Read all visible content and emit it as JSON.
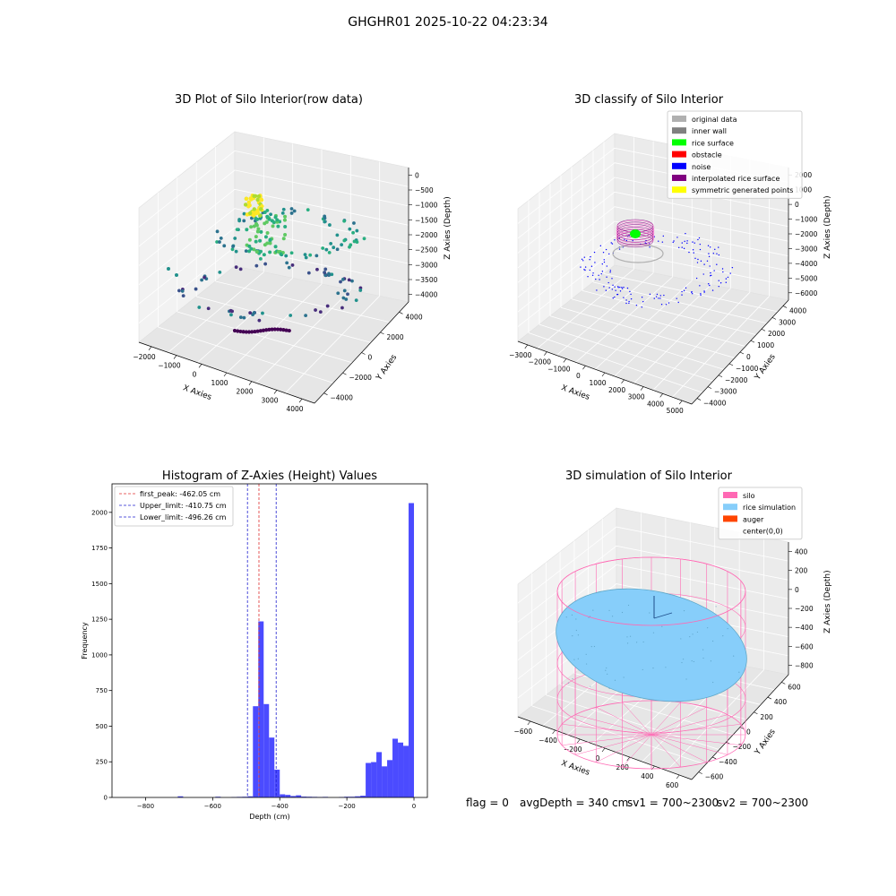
{
  "suptitle": "GHGHR01 2025-10-22 04:23:34",
  "footer": {
    "flag": "flag = 0",
    "avg": "avgDepth = 340 cm",
    "sv1": "sv1 = 700~2300",
    "sv2": "sv2 = 700~2300"
  },
  "colors": {
    "hist_bar": "#4b4bff",
    "first_peak": "#e03030",
    "limits": "#2020d0",
    "silo": "#ff69b4",
    "rice": "#87cefa",
    "auger": "#ff4500",
    "original": "#b0b0b0",
    "inner_wall": "#808080",
    "rice_surface": "#00ff00",
    "obstacle": "#ff0000",
    "noise": "#0000ff",
    "interpolated": "#800080",
    "symmetric": "#ffff00"
  },
  "chart_data": [
    {
      "type": "scatter",
      "title": "3D Plot of Silo Interior(row data)",
      "xlabel": "X Axies",
      "ylabel": "Y Axies",
      "zlabel": "Z Axies (Depth)",
      "x_ticks": [
        "−2000",
        "−1000",
        "0",
        "1000",
        "2000",
        "3000",
        "4000"
      ],
      "y_ticks": [
        "−4000",
        "−2000",
        "0",
        "2000",
        "4000"
      ],
      "z_ticks": [
        "0",
        "−500",
        "−1000",
        "−1500",
        "−2000",
        "−2500",
        "−3000",
        "−3500",
        "−4000"
      ],
      "xlim": [
        -2400,
        4600
      ],
      "ylim": [
        -4500,
        4500
      ],
      "zlim": [
        -4300,
        200
      ],
      "colormap": "viridis",
      "grid": true
    },
    {
      "type": "scatter",
      "title": "3D classify of Silo Interior",
      "xlabel": "X Axies",
      "ylabel": "Y Axies",
      "zlabel": "Z Axies (Depth)",
      "x_ticks": [
        "−3000",
        "−2000",
        "−1000",
        "0",
        "1000",
        "2000",
        "3000",
        "4000",
        "5000"
      ],
      "y_ticks": [
        "−4000",
        "−3000",
        "−2000",
        "−1000",
        "0",
        "1000",
        "2000",
        "3000",
        "4000"
      ],
      "z_ticks": [
        "2000",
        "1000",
        "0",
        "−1000",
        "−2000",
        "−3000",
        "−4000",
        "−5000",
        "−6000"
      ],
      "xlim": [
        -3200,
        5200
      ],
      "ylim": [
        -4300,
        4300
      ],
      "zlim": [
        -6300,
        2300
      ],
      "legend": [
        "original data",
        "inner wall",
        "rice surface",
        "obstacle",
        "noise",
        "interpolated rice surface",
        "symmetric generated points"
      ],
      "legend_position": "top-right",
      "grid": true
    },
    {
      "type": "bar",
      "title": "Histogram of Z-Axies (Height) Values",
      "xlabel": "Depth (cm)",
      "ylabel": "Frequency",
      "xlim": [
        -900,
        40
      ],
      "ylim": [
        0,
        2200
      ],
      "x_ticks": [
        "−800",
        "−600",
        "−400",
        "−200",
        "0"
      ],
      "y_ticks": [
        "0",
        "250",
        "500",
        "750",
        "1000",
        "1250",
        "1500",
        "1750",
        "2000"
      ],
      "bin_width": 16,
      "bins": [
        {
          "x": -704,
          "v": 8
        },
        {
          "x": -592,
          "v": 5
        },
        {
          "x": -544,
          "v": 3
        },
        {
          "x": -528,
          "v": 4
        },
        {
          "x": -512,
          "v": 5
        },
        {
          "x": -496,
          "v": 8
        },
        {
          "x": -480,
          "v": 640
        },
        {
          "x": -464,
          "v": 1235
        },
        {
          "x": -448,
          "v": 655
        },
        {
          "x": -432,
          "v": 420
        },
        {
          "x": -416,
          "v": 195
        },
        {
          "x": -400,
          "v": 22
        },
        {
          "x": -384,
          "v": 18
        },
        {
          "x": -368,
          "v": 10
        },
        {
          "x": -352,
          "v": 15
        },
        {
          "x": -336,
          "v": 6
        },
        {
          "x": -320,
          "v": 5
        },
        {
          "x": -304,
          "v": 4
        },
        {
          "x": -288,
          "v": 3
        },
        {
          "x": -272,
          "v": 4
        },
        {
          "x": -224,
          "v": 3
        },
        {
          "x": -208,
          "v": 5
        },
        {
          "x": -192,
          "v": 5
        },
        {
          "x": -176,
          "v": 8
        },
        {
          "x": -160,
          "v": 12
        },
        {
          "x": -144,
          "v": 242
        },
        {
          "x": -128,
          "v": 248
        },
        {
          "x": -112,
          "v": 318
        },
        {
          "x": -96,
          "v": 218
        },
        {
          "x": -80,
          "v": 262
        },
        {
          "x": -64,
          "v": 412
        },
        {
          "x": -48,
          "v": 385
        },
        {
          "x": -32,
          "v": 362
        },
        {
          "x": -16,
          "v": 2065
        }
      ],
      "lines": [
        {
          "label": "first_peak: -462.05 cm",
          "x": -462.05,
          "color_key": "first_peak"
        },
        {
          "label": "Upper_limit: -410.75 cm",
          "x": -410.75,
          "color_key": "limits"
        },
        {
          "label": "Lower_limit: -496.26 cm",
          "x": -496.26,
          "color_key": "limits"
        }
      ],
      "legend_position": "top-left",
      "grid": false
    },
    {
      "type": "scatter",
      "title": "3D simulation of Silo Interior",
      "xlabel": "X Axies",
      "ylabel": "Y Axies",
      "zlabel": "Z Axies (Depth)",
      "x_ticks": [
        "−600",
        "−400",
        "−200",
        "0",
        "200",
        "400",
        "600"
      ],
      "y_ticks": [
        "−600",
        "−400",
        "−200",
        "0",
        "200",
        "400",
        "600"
      ],
      "z_ticks": [
        "400",
        "200",
        "0",
        "−200",
        "−400",
        "−600",
        "−800"
      ],
      "xlim": [
        -700,
        700
      ],
      "ylim": [
        -700,
        700
      ],
      "zlim": [
        -900,
        450
      ],
      "legend": [
        "silo",
        "rice simulation",
        "auger",
        "center(0,0)"
      ],
      "legend_position": "top-right",
      "grid": true
    }
  ]
}
